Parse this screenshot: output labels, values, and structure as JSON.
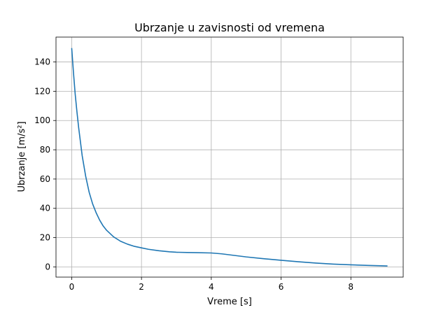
{
  "chart_data": {
    "type": "line",
    "title": "Ubrzanje u zavisnosti od vremena",
    "xlabel": "Vreme [s]",
    "ylabel": "Ubrzanje [m/s²]",
    "xlim": [
      -0.45,
      9.5
    ],
    "ylim": [
      -7,
      157
    ],
    "xticks": [
      0,
      2,
      4,
      6,
      8
    ],
    "yticks": [
      0,
      20,
      40,
      60,
      80,
      100,
      120,
      140
    ],
    "grid": true,
    "series": [
      {
        "color": "#1f77b4",
        "x": [
          0,
          0.05,
          0.1,
          0.15,
          0.2,
          0.3,
          0.4,
          0.5,
          0.6,
          0.7,
          0.8,
          0.9,
          1.0,
          1.2,
          1.4,
          1.6,
          1.8,
          2.0,
          2.2,
          2.5,
          2.8,
          3.0,
          3.3,
          3.6,
          4.0,
          4.3,
          4.6,
          5.0,
          5.5,
          6.0,
          6.5,
          7.0,
          7.5,
          8.0,
          8.5,
          9.05
        ],
        "y": [
          149.5,
          133,
          118,
          106,
          95,
          76,
          62,
          51,
          43,
          37,
          32,
          28,
          25,
          20.5,
          17.5,
          15.5,
          14,
          13,
          12,
          11,
          10.3,
          10,
          9.8,
          9.7,
          9.5,
          8.9,
          8,
          6.8,
          5.6,
          4.5,
          3.5,
          2.6,
          1.9,
          1.4,
          1.0,
          0.6
        ]
      }
    ]
  }
}
